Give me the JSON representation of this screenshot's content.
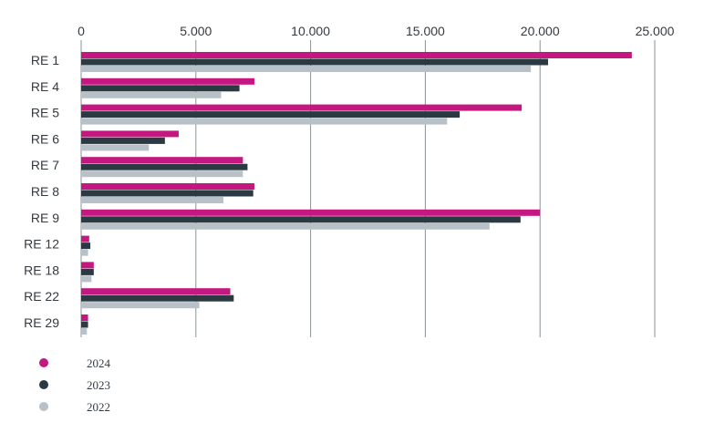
{
  "chart_data": {
    "type": "bar",
    "orientation": "horizontal",
    "categories": [
      "RE 1",
      "RE 4",
      "RE 5",
      "RE 6",
      "RE 7",
      "RE 8",
      "RE 9",
      "RE 12",
      "RE 18",
      "RE 22",
      "RE 29"
    ],
    "series": [
      {
        "name": "2024",
        "color": "#c4177f",
        "values": [
          24000,
          7550,
          19200,
          4250,
          7050,
          7550,
          20000,
          350,
          550,
          6500,
          300
        ]
      },
      {
        "name": "2023",
        "color": "#2b3a42",
        "values": [
          20350,
          6900,
          16500,
          3650,
          7250,
          7500,
          19150,
          400,
          550,
          6650,
          300
        ]
      },
      {
        "name": "2022",
        "color": "#b9c1c8",
        "values": [
          19600,
          6100,
          15950,
          2950,
          7050,
          6200,
          17800,
          300,
          450,
          5150,
          250
        ]
      }
    ],
    "xlim": [
      0,
      25000
    ],
    "xticks": [
      0,
      5000,
      10000,
      15000,
      20000,
      25000
    ],
    "xtick_labels": [
      "0",
      "5.000",
      "10.000",
      "15.000",
      "20.000",
      "25.000"
    ],
    "xaxis_position": "top",
    "grid": "vertical",
    "legend_position": "bottom-left",
    "title": "",
    "xlabel": "",
    "ylabel": ""
  }
}
